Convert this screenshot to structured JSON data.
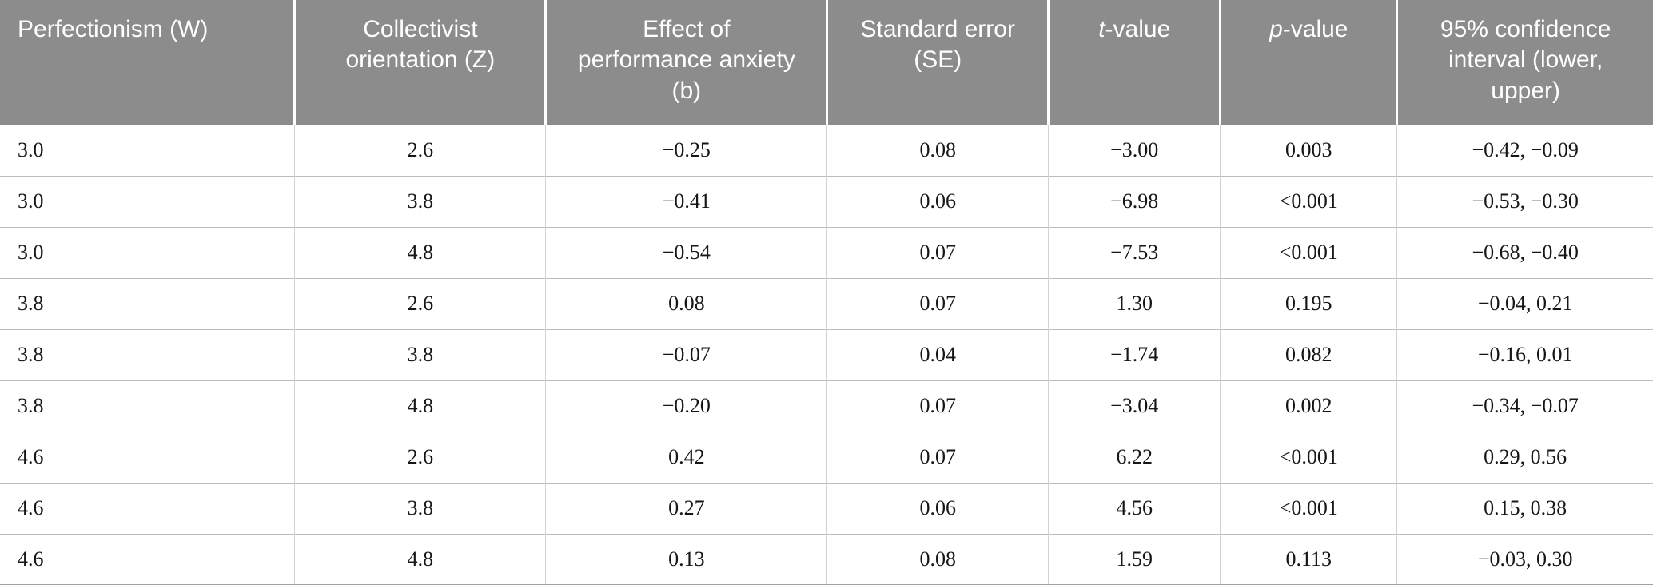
{
  "theme": {
    "header_bg": "#8c8c8c",
    "header_text": "#ffffff",
    "row_divider": "#bdbdbd",
    "column_divider": "#d2d2d2",
    "bottom_border": "#a3a3a3",
    "body_text": "#161616",
    "page_bg": "#ffffff"
  },
  "table": {
    "columns": [
      {
        "italic": "",
        "text": "Perfectionism (W)",
        "align": "left"
      },
      {
        "italic": "",
        "text": "Collectivist orientation (Z)",
        "align": "center"
      },
      {
        "italic": "",
        "text": "Effect of performance anxiety (b)",
        "align": "center"
      },
      {
        "italic": "",
        "text": "Standard error (SE)",
        "align": "center"
      },
      {
        "italic": "t",
        "text": "-value",
        "align": "center"
      },
      {
        "italic": "p",
        "text": "-value",
        "align": "center"
      },
      {
        "italic": "",
        "text": "95% confidence interval (lower, upper)",
        "align": "center"
      }
    ],
    "column_widths_pct": [
      17.84,
      15.18,
      17.02,
      13.39,
      10.4,
      10.69,
      15.48
    ],
    "rows": [
      [
        "3.0",
        "2.6",
        "−0.25",
        "0.08",
        "−3.00",
        "0.003",
        "−0.42, −0.09"
      ],
      [
        "3.0",
        "3.8",
        "−0.41",
        "0.06",
        "−6.98",
        "<0.001",
        "−0.53, −0.30"
      ],
      [
        "3.0",
        "4.8",
        "−0.54",
        "0.07",
        "−7.53",
        "<0.001",
        "−0.68, −0.40"
      ],
      [
        "3.8",
        "2.6",
        "0.08",
        "0.07",
        "1.30",
        "0.195",
        "−0.04, 0.21"
      ],
      [
        "3.8",
        "3.8",
        "−0.07",
        "0.04",
        "−1.74",
        "0.082",
        "−0.16, 0.01"
      ],
      [
        "3.8",
        "4.8",
        "−0.20",
        "0.07",
        "−3.04",
        "0.002",
        "−0.34, −0.07"
      ],
      [
        "4.6",
        "2.6",
        "0.42",
        "0.07",
        "6.22",
        "<0.001",
        "0.29, 0.56"
      ],
      [
        "4.6",
        "3.8",
        "0.27",
        "0.06",
        "4.56",
        "<0.001",
        "0.15, 0.38"
      ],
      [
        "4.6",
        "4.8",
        "0.13",
        "0.08",
        "1.59",
        "0.113",
        "−0.03, 0.30"
      ]
    ]
  }
}
